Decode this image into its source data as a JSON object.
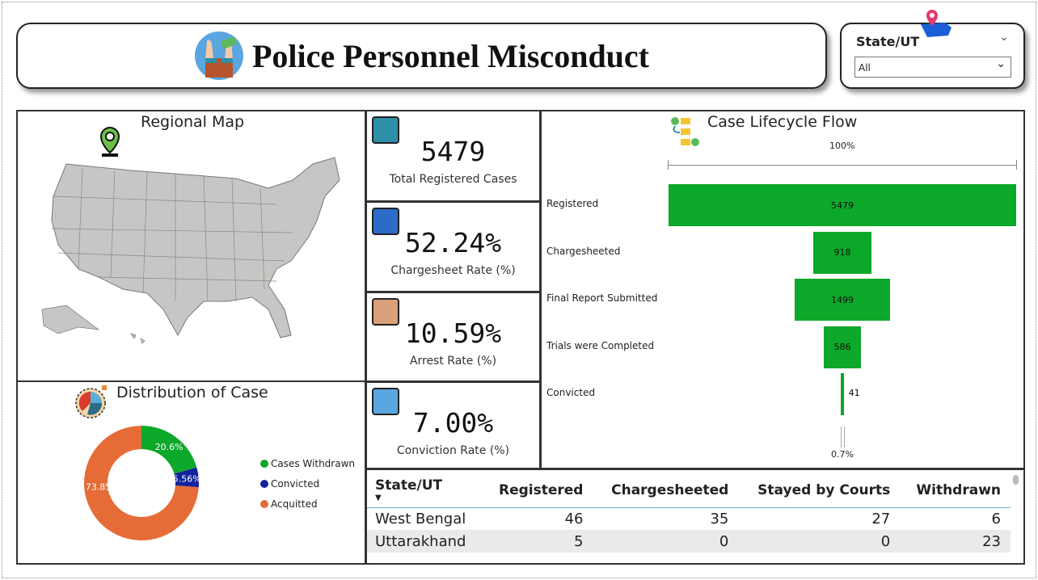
{
  "header": {
    "title": "Police Personnel Misconduct",
    "icon": "handcuffed-hands-money-icon"
  },
  "slicer": {
    "label": "State/UT",
    "value": "All"
  },
  "map": {
    "title": "Regional Map",
    "icon": "map-pin-icon"
  },
  "kpis": [
    {
      "value": "5479",
      "label": "Total Registered Cases",
      "icon": "briefcase-search-icon"
    },
    {
      "value": "52.24%",
      "label": "Chargesheet Rate (%)",
      "icon": "document-icon"
    },
    {
      "value": "10.59%",
      "label": "Arrest Rate (%)",
      "icon": "handcuffs-icon"
    },
    {
      "value": "7.00%",
      "label": "Conviction Rate (%)",
      "icon": "judge-gavel-icon"
    }
  ],
  "funnel": {
    "title": "Case Lifecycle Flow",
    "top_pct": "100%",
    "bottom_pct": "0.7%",
    "color": "#0ca82a",
    "stages": [
      {
        "label": "Registered",
        "value": 5479
      },
      {
        "label": "Chargesheeted",
        "value": 918
      },
      {
        "label": "Final Report Submitted",
        "value": 1499
      },
      {
        "label": "Trials were Completed",
        "value": 586
      },
      {
        "label": "Convicted",
        "value": 41
      }
    ]
  },
  "donut": {
    "title": "Distribution of Case",
    "slices": [
      {
        "label": "Cases Withdrawn",
        "value": 20.6,
        "text": "20.6%",
        "color": "#0ca82a"
      },
      {
        "label": "Convicted",
        "value": 5.56,
        "text": "5.56%",
        "color": "#12239e"
      },
      {
        "label": "Acquitted",
        "value": 73.85,
        "text": "73.85%",
        "color": "#e66c37"
      }
    ]
  },
  "table": {
    "columns": [
      "State/UT",
      "Registered",
      "Chargesheeted",
      "Stayed by Courts",
      "Withdrawn"
    ],
    "rows": [
      [
        "West Bengal",
        "46",
        "35",
        "27",
        "6"
      ],
      [
        "Uttarakhand",
        "5",
        "0",
        "0",
        "23"
      ]
    ]
  }
}
